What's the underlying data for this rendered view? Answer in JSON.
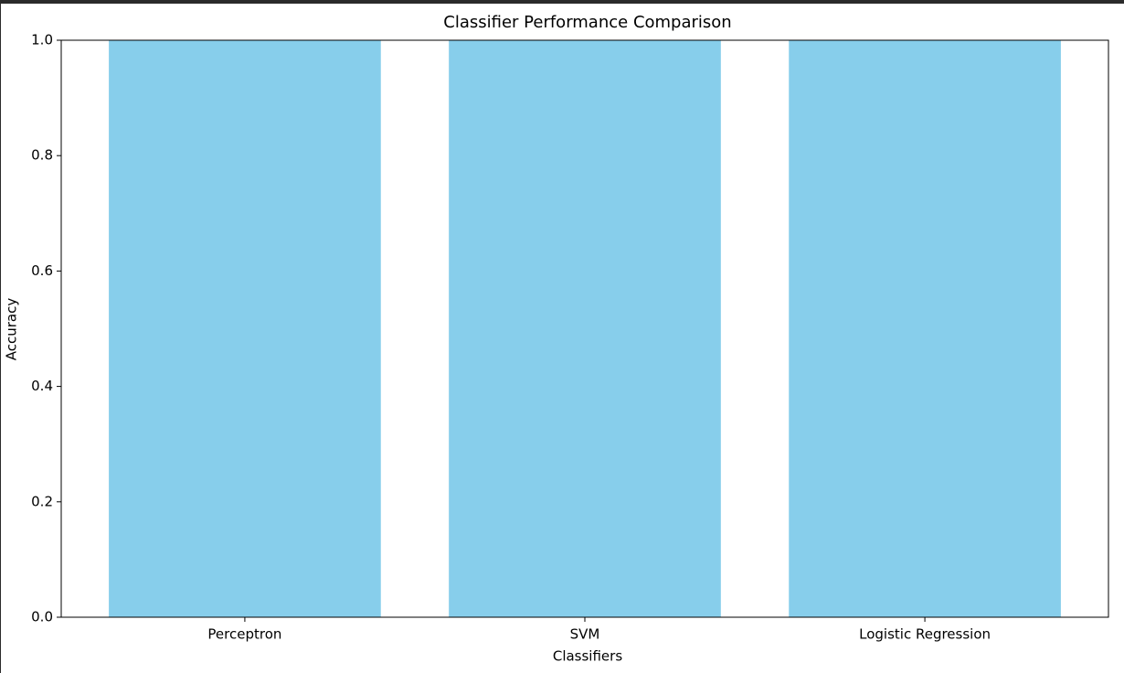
{
  "chart_data": {
    "type": "bar",
    "title": "Classifier Performance Comparison",
    "x_label": "Classifiers",
    "y_label": "Accuracy",
    "categories": [
      "Perceptron",
      "SVM",
      "Logistic Regression"
    ],
    "values": [
      1.0,
      1.0,
      1.0
    ],
    "color": "#87ceeb",
    "ylim": [
      0,
      1
    ],
    "yticks": [
      {
        "value": 0,
        "label": "0.0"
      },
      0.2,
      0.4,
      0.6,
      0.8,
      {
        "value": 1,
        "label": "1.0"
      }
    ],
    "grid": false
  }
}
